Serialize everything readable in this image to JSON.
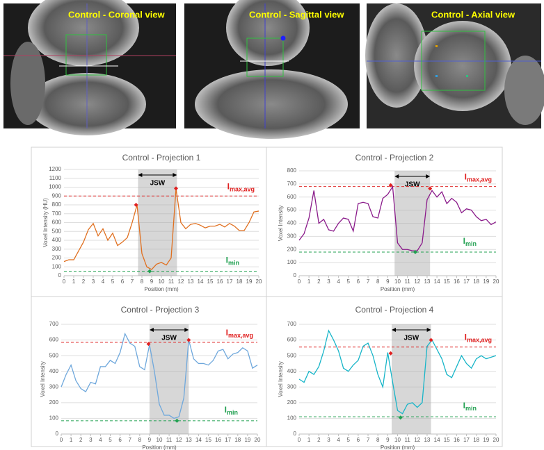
{
  "images": [
    {
      "title": "Control - Coronal view"
    },
    {
      "title": "Control - Sagittal view"
    },
    {
      "title": "Control - Axial view"
    }
  ],
  "chart_data": [
    {
      "type": "line",
      "title": "Control - Projection 1",
      "x_label": "Position (mm)",
      "y_label": "Voxel Intensity (HU)",
      "color": "#e07020",
      "x": [
        0,
        0.5,
        1,
        1.5,
        2,
        2.5,
        3,
        3.5,
        4,
        4.5,
        5,
        5.5,
        6,
        6.5,
        7,
        7.5,
        8,
        8.5,
        9,
        9.5,
        10,
        10.5,
        11,
        11.5,
        12,
        12.5,
        13,
        13.5,
        14,
        14.5,
        15,
        15.5,
        16,
        16.5,
        17,
        17.5,
        18,
        18.5,
        19,
        19.5,
        20
      ],
      "values": [
        160,
        180,
        180,
        280,
        380,
        520,
        590,
        450,
        530,
        400,
        480,
        340,
        380,
        430,
        600,
        800,
        250,
        100,
        70,
        130,
        150,
        120,
        200,
        985,
        600,
        530,
        580,
        590,
        570,
        540,
        560,
        560,
        580,
        550,
        590,
        560,
        510,
        510,
        600,
        720,
        730
      ],
      "xlim": [
        0,
        20
      ],
      "xticks": [
        0,
        1,
        2,
        3,
        4,
        5,
        6,
        7,
        8,
        9,
        10,
        11,
        12,
        13,
        14,
        15,
        16,
        17,
        18,
        19,
        20
      ],
      "ylim": [
        0,
        1200
      ],
      "yticks": [
        0,
        100,
        200,
        300,
        400,
        500,
        600,
        700,
        800,
        900,
        1000,
        1100,
        1200
      ],
      "grid": true,
      "jsw": [
        7.6,
        11.6
      ],
      "jsw_label": "JSW",
      "imax_line": 900,
      "imin_line": 50,
      "imax_label": {
        "base": "I",
        "sub": "max,avg"
      },
      "imin_label": {
        "base": "I",
        "sub": "min"
      },
      "max_points": [
        {
          "x": 7.4,
          "y": 800
        },
        {
          "x": 11.5,
          "y": 985
        }
      ],
      "min_point": {
        "x": 8.8,
        "y": 50
      }
    },
    {
      "type": "line",
      "title": "Control - Projection 2",
      "x_label": "Position (mm)",
      "y_label": "Voxel Intensity",
      "color": "#8a1a8a",
      "x": [
        0,
        0.5,
        1,
        1.5,
        2,
        2.5,
        3,
        3.5,
        4,
        4.5,
        5,
        5.5,
        6,
        6.5,
        7,
        7.5,
        8,
        8.5,
        9,
        9.5,
        10,
        10.5,
        11,
        11.5,
        12,
        12.5,
        13,
        13.5,
        14,
        14.5,
        15,
        15.5,
        16,
        16.5,
        17,
        17.5,
        18,
        18.5,
        19,
        19.5,
        20
      ],
      "values": [
        270,
        320,
        440,
        650,
        400,
        430,
        350,
        340,
        400,
        440,
        430,
        340,
        550,
        560,
        550,
        450,
        440,
        590,
        620,
        680,
        250,
        200,
        200,
        190,
        190,
        250,
        580,
        650,
        600,
        640,
        550,
        590,
        560,
        480,
        510,
        500,
        450,
        420,
        430,
        390,
        410
      ],
      "xlim": [
        0,
        20
      ],
      "xticks": [
        0,
        1,
        2,
        3,
        4,
        5,
        6,
        7,
        8,
        9,
        10,
        11,
        12,
        13,
        14,
        15,
        16,
        17,
        18,
        19,
        20
      ],
      "ylim": [
        0,
        800
      ],
      "yticks": [
        0,
        100,
        200,
        300,
        400,
        500,
        600,
        700,
        800
      ],
      "grid": true,
      "jsw": [
        9.7,
        13.3
      ],
      "jsw_label": "JSW",
      "imax_line": 680,
      "imin_line": 180,
      "imax_label": {
        "base": "I",
        "sub": "max,avg"
      },
      "imin_label": {
        "base": "I",
        "sub": "min"
      },
      "max_points": [
        {
          "x": 9.3,
          "y": 690
        },
        {
          "x": 13.3,
          "y": 665
        }
      ],
      "min_point": {
        "x": 11.8,
        "y": 180
      }
    },
    {
      "type": "line",
      "title": "Control - Projection 3",
      "x_label": "Position (mm)",
      "y_label": "Voxel Intensity",
      "color": "#6fa8dc",
      "x": [
        0,
        0.5,
        1,
        1.5,
        2,
        2.5,
        3,
        3.5,
        4,
        4.5,
        5,
        5.5,
        6,
        6.5,
        7,
        7.5,
        8,
        8.5,
        9,
        9.5,
        10,
        10.5,
        11,
        11.5,
        12,
        12.5,
        13,
        13.5,
        14,
        14.5,
        15,
        15.5,
        16,
        16.5,
        17,
        17.5,
        18,
        18.5,
        19,
        19.5,
        20
      ],
      "values": [
        300,
        380,
        440,
        340,
        290,
        270,
        330,
        320,
        430,
        430,
        470,
        450,
        520,
        640,
        580,
        560,
        430,
        410,
        570,
        400,
        190,
        120,
        120,
        100,
        110,
        230,
        600,
        480,
        450,
        450,
        440,
        470,
        530,
        540,
        480,
        510,
        520,
        550,
        530,
        420,
        440
      ],
      "xlim": [
        0,
        20
      ],
      "xticks": [
        0,
        1,
        2,
        3,
        4,
        5,
        6,
        7,
        8,
        9,
        10,
        11,
        12,
        13,
        14,
        15,
        16,
        17,
        18,
        19,
        20
      ],
      "ylim": [
        0,
        700
      ],
      "yticks": [
        0,
        100,
        200,
        300,
        400,
        500,
        600,
        700
      ],
      "grid": true,
      "jsw": [
        9.0,
        13.0
      ],
      "jsw_label": "JSW",
      "imax_line": 585,
      "imin_line": 85,
      "imax_label": {
        "base": "I",
        "sub": "max,avg"
      },
      "imin_label": {
        "base": "I",
        "sub": "min"
      },
      "max_points": [
        {
          "x": 8.9,
          "y": 575
        },
        {
          "x": 13.0,
          "y": 600
        }
      ],
      "min_point": {
        "x": 11.8,
        "y": 85
      }
    },
    {
      "type": "line",
      "title": "Control - Projection 4",
      "x_label": "Position (mm)",
      "y_label": "Voxel Intensity",
      "color": "#17b5c8",
      "x": [
        0,
        0.5,
        1,
        1.5,
        2,
        2.5,
        3,
        3.5,
        4,
        4.5,
        5,
        5.5,
        6,
        6.5,
        7,
        7.5,
        8,
        8.5,
        9,
        9.5,
        10,
        10.5,
        11,
        11.5,
        12,
        12.5,
        13,
        13.5,
        14,
        14.5,
        15,
        15.5,
        16,
        16.5,
        17,
        17.5,
        18,
        18.5,
        19,
        19.5,
        20
      ],
      "values": [
        350,
        330,
        400,
        380,
        430,
        530,
        660,
        600,
        530,
        420,
        400,
        440,
        470,
        560,
        580,
        500,
        380,
        300,
        520,
        330,
        150,
        130,
        190,
        200,
        170,
        200,
        560,
        600,
        540,
        480,
        380,
        360,
        430,
        500,
        450,
        420,
        480,
        500,
        480,
        490,
        500
      ],
      "xlim": [
        0,
        20
      ],
      "xticks": [
        0,
        1,
        2,
        3,
        4,
        5,
        6,
        7,
        8,
        9,
        10,
        11,
        12,
        13,
        14,
        15,
        16,
        17,
        18,
        19,
        20
      ],
      "ylim": [
        0,
        700
      ],
      "yticks": [
        0,
        100,
        200,
        300,
        400,
        500,
        600,
        700
      ],
      "grid": true,
      "jsw": [
        9.4,
        13.4
      ],
      "jsw_label": "JSW",
      "imax_line": 555,
      "imin_line": 110,
      "imax_label": {
        "base": "I",
        "sub": "max,avg"
      },
      "imin_label": {
        "base": "I",
        "sub": "min"
      },
      "max_points": [
        {
          "x": 9.3,
          "y": 515
        },
        {
          "x": 13.4,
          "y": 600
        }
      ],
      "min_point": {
        "x": 10.3,
        "y": 105
      }
    }
  ]
}
